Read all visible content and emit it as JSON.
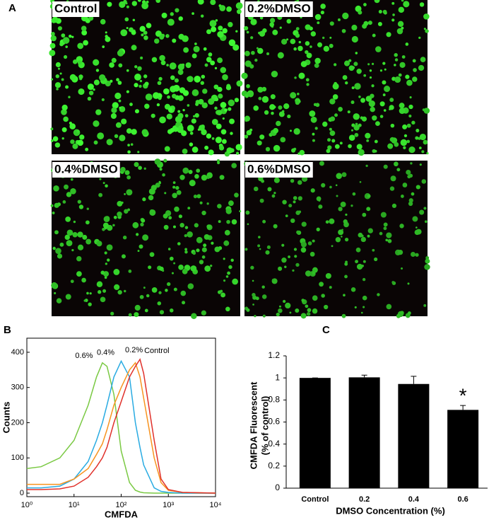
{
  "panel_a": {
    "label": "A",
    "images": [
      {
        "label": "Control"
      },
      {
        "label": "0.2%DMSO"
      },
      {
        "label": "0.4%DMSO"
      },
      {
        "label": "0.6%DMSO"
      }
    ]
  },
  "chart_data": [
    {
      "type": "line",
      "panel": "B",
      "xlabel": "CMFDA",
      "ylabel": "Counts",
      "log_x": true,
      "x": [
        1,
        2,
        5,
        10,
        20,
        30,
        40,
        50,
        70,
        100,
        150,
        200,
        250,
        300,
        500,
        700,
        1000,
        2000,
        10000
      ],
      "series": [
        {
          "name": "0.6%",
          "color": "#7ac943",
          "values": [
            70,
            75,
            100,
            150,
            250,
            330,
            370,
            360,
            280,
            120,
            30,
            8,
            3,
            1,
            0,
            0,
            0,
            0,
            0
          ]
        },
        {
          "name": "0.4%",
          "color": "#29abe2",
          "values": [
            15,
            15,
            20,
            40,
            90,
            150,
            200,
            250,
            330,
            375,
            330,
            200,
            130,
            80,
            15,
            5,
            2,
            0,
            0
          ]
        },
        {
          "name": "0.2%",
          "color": "#f7931e",
          "values": [
            25,
            25,
            25,
            40,
            70,
            110,
            140,
            180,
            250,
            300,
            350,
            370,
            330,
            270,
            100,
            30,
            8,
            2,
            0
          ]
        },
        {
          "name": "Control",
          "color": "#e0302a",
          "values": [
            10,
            10,
            12,
            20,
            45,
            75,
            100,
            130,
            200,
            260,
            330,
            360,
            380,
            340,
            150,
            40,
            10,
            2,
            0
          ]
        }
      ],
      "xlim": [
        1,
        10000
      ],
      "xticks": [
        {
          "value": 1,
          "label": "10⁰"
        },
        {
          "value": 10,
          "label": "10¹"
        },
        {
          "value": 100,
          "label": "10²"
        },
        {
          "value": 1000,
          "label": "10³"
        },
        {
          "value": 10000,
          "label": "10⁴"
        }
      ],
      "ylim": [
        -10,
        440
      ],
      "yticks": [
        0,
        100,
        200,
        300,
        400
      ]
    },
    {
      "type": "bar",
      "panel": "C",
      "xlabel": "DMSO  Concentration (%)",
      "ylabel": [
        "CMFDA Fluorescent",
        "(% of control)"
      ],
      "categories": [
        "Control",
        "0.2",
        "0.4",
        "0.6"
      ],
      "values": [
        1,
        1.005,
        0.945,
        0.71
      ],
      "errors": [
        0,
        0.02,
        0.07,
        0.04
      ],
      "significance": [
        null,
        null,
        null,
        "*"
      ],
      "color": "#000000",
      "ylim": [
        0,
        1.2
      ],
      "yticks": [
        0,
        0.2,
        0.4,
        0.6,
        0.8,
        1,
        1.2
      ]
    }
  ]
}
